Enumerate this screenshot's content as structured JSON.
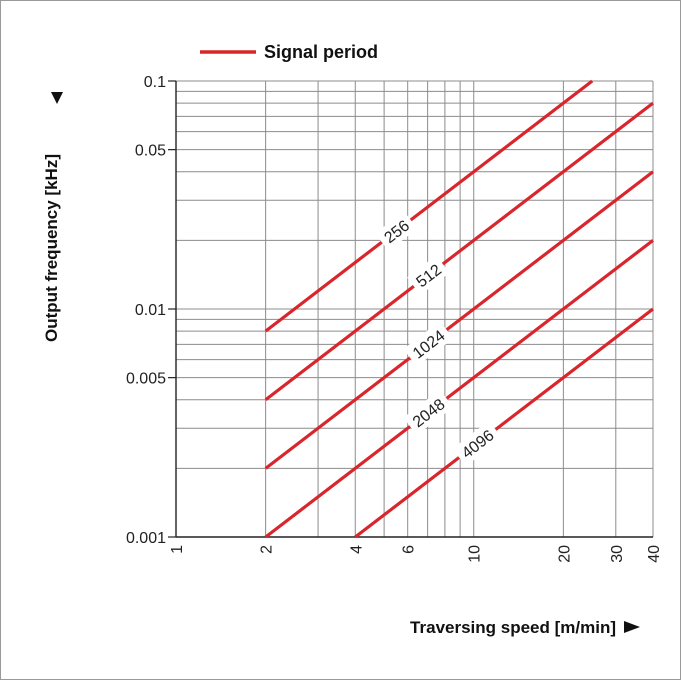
{
  "chart_data": {
    "type": "line",
    "x_scale": "log",
    "y_scale": "log",
    "xlim": [
      1,
      40
    ],
    "ylim": [
      0.001,
      0.1
    ],
    "grid": true,
    "xlabel": "Traversing speed [m/min]",
    "ylabel": "Output frequency [kHz]",
    "legend": {
      "label": "Signal period",
      "color": "#d9262c",
      "placement": "top-left"
    },
    "x_ticks": [
      1,
      2,
      4,
      6,
      10,
      20,
      30,
      40
    ],
    "x_tick_labels": [
      "1",
      "2",
      "4",
      "6",
      "10",
      "20",
      "30",
      "40"
    ],
    "y_ticks": [
      0.001,
      0.005,
      0.01,
      0.05,
      0.1
    ],
    "y_tick_labels": [
      "0.001",
      "0.005",
      "0.01",
      "0.05",
      "0.1"
    ],
    "series": [
      {
        "name": "256",
        "x": [
          2,
          25
        ],
        "y": [
          0.008,
          0.1
        ]
      },
      {
        "name": "512",
        "x": [
          2,
          40
        ],
        "y": [
          0.004,
          0.08
        ]
      },
      {
        "name": "1024",
        "x": [
          2,
          40
        ],
        "y": [
          0.002,
          0.04
        ]
      },
      {
        "name": "2048",
        "x": [
          2,
          40
        ],
        "y": [
          0.001,
          0.02
        ]
      },
      {
        "name": "4096",
        "x": [
          4,
          40
        ],
        "y": [
          0.001,
          0.01
        ]
      }
    ],
    "line_color": "#d9262c"
  }
}
